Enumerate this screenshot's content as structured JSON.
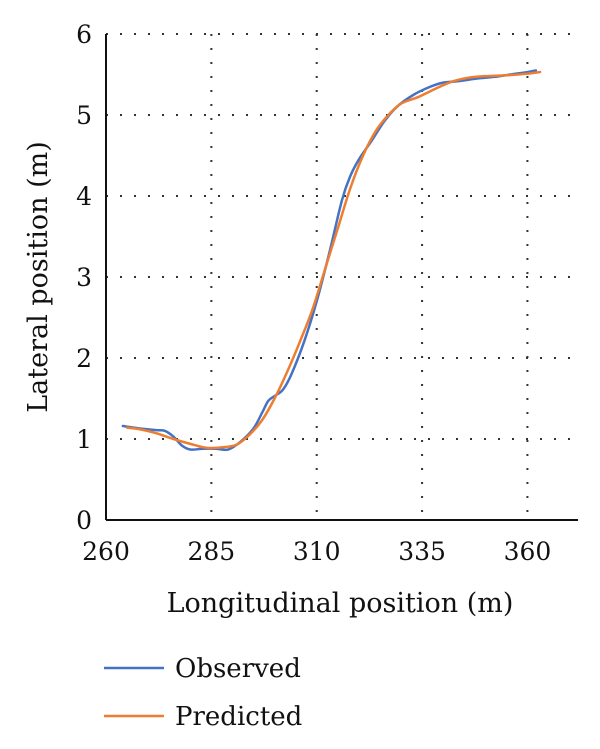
{
  "chart_data": {
    "type": "line",
    "title": "",
    "xlabel": "Longitudinal position (m)",
    "ylabel": "Lateral position (m)",
    "xlim": [
      260,
      372
    ],
    "ylim": [
      0,
      6
    ],
    "x_ticks": [
      260,
      285,
      310,
      335,
      360
    ],
    "y_ticks": [
      0,
      1,
      2,
      3,
      4,
      5,
      6
    ],
    "grid": "dotted",
    "legend_position": "bottom",
    "series": [
      {
        "name": "Observed",
        "color": "#4472C4",
        "points": [
          [
            264,
            1.16
          ],
          [
            268,
            1.13
          ],
          [
            272,
            1.11
          ],
          [
            274,
            1.1
          ],
          [
            276,
            1.03
          ],
          [
            278,
            0.92
          ],
          [
            280,
            0.87
          ],
          [
            283,
            0.88
          ],
          [
            286,
            0.88
          ],
          [
            289,
            0.87
          ],
          [
            292,
            0.97
          ],
          [
            295,
            1.13
          ],
          [
            297,
            1.32
          ],
          [
            298.5,
            1.47
          ],
          [
            300,
            1.53
          ],
          [
            302,
            1.61
          ],
          [
            304,
            1.8
          ],
          [
            307,
            2.2
          ],
          [
            310,
            2.7
          ],
          [
            313,
            3.3
          ],
          [
            316,
            3.95
          ],
          [
            318,
            4.25
          ],
          [
            320,
            4.45
          ],
          [
            323,
            4.68
          ],
          [
            326,
            4.92
          ],
          [
            329,
            5.1
          ],
          [
            333,
            5.25
          ],
          [
            337,
            5.35
          ],
          [
            340,
            5.4
          ],
          [
            344,
            5.42
          ],
          [
            348,
            5.45
          ],
          [
            352,
            5.47
          ],
          [
            356,
            5.5
          ],
          [
            360,
            5.53
          ],
          [
            362,
            5.55
          ]
        ]
      },
      {
        "name": "Predicted",
        "color": "#ED7D31",
        "points": [
          [
            265,
            1.14
          ],
          [
            268,
            1.12
          ],
          [
            272,
            1.07
          ],
          [
            276,
            1.0
          ],
          [
            280,
            0.94
          ],
          [
            284,
            0.89
          ],
          [
            288,
            0.9
          ],
          [
            291,
            0.93
          ],
          [
            294,
            1.05
          ],
          [
            297,
            1.23
          ],
          [
            300,
            1.5
          ],
          [
            303,
            1.83
          ],
          [
            306,
            2.2
          ],
          [
            309,
            2.6
          ],
          [
            312,
            3.1
          ],
          [
            315,
            3.6
          ],
          [
            318,
            4.1
          ],
          [
            321,
            4.5
          ],
          [
            324,
            4.8
          ],
          [
            327,
            5.0
          ],
          [
            330,
            5.14
          ],
          [
            334,
            5.22
          ],
          [
            338,
            5.32
          ],
          [
            342,
            5.41
          ],
          [
            346,
            5.46
          ],
          [
            350,
            5.48
          ],
          [
            355,
            5.49
          ],
          [
            360,
            5.51
          ],
          [
            363,
            5.53
          ]
        ]
      }
    ]
  }
}
